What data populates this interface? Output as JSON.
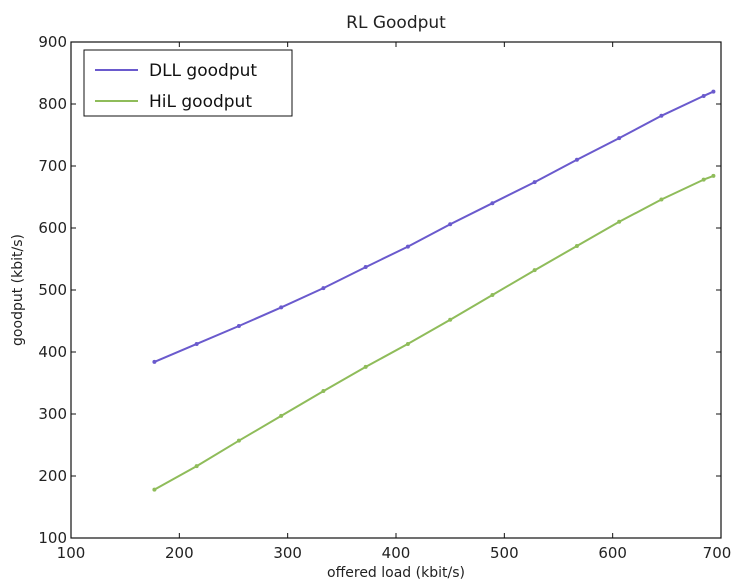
{
  "chart_data": {
    "type": "line",
    "title": "RL Goodput",
    "xlabel": "offered load (kbit/s)",
    "ylabel": "goodput (kbit/s)",
    "xlim": [
      100,
      700
    ],
    "ylim": [
      100,
      900
    ],
    "x_ticks": [
      100,
      200,
      300,
      400,
      500,
      600,
      700
    ],
    "y_ticks": [
      100,
      200,
      300,
      400,
      500,
      600,
      700,
      800,
      900
    ],
    "grid": false,
    "legend_position": "top-left",
    "series": [
      {
        "name": "DLL goodput",
        "color": "#6a5acd",
        "x": [
          177,
          216,
          255,
          294,
          333,
          372,
          411,
          450,
          489,
          528,
          567,
          606,
          645,
          684,
          693
        ],
        "y": [
          384,
          413,
          442,
          472,
          503,
          537,
          570,
          606,
          640,
          674,
          710,
          745,
          781,
          813,
          820
        ]
      },
      {
        "name": "HiL goodput",
        "color": "#8fbc5a",
        "x": [
          177,
          216,
          255,
          294,
          333,
          372,
          411,
          450,
          489,
          528,
          567,
          606,
          645,
          684,
          693
        ],
        "y": [
          178,
          216,
          257,
          297,
          337,
          376,
          413,
          452,
          492,
          532,
          571,
          610,
          646,
          678,
          684
        ]
      }
    ]
  }
}
